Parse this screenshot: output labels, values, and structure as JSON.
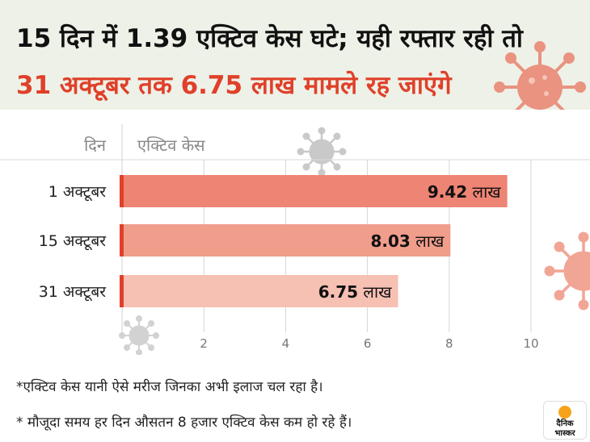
{
  "header": {
    "title_line1": "15 दिन में 1.39 एक्टिव केस घटे; यही रफ्तार रही तो",
    "title_line2": "31 अक्टूबर तक 6.75 लाख मामले रह जाएंगे"
  },
  "chart_data": {
    "type": "bar",
    "orientation": "horizontal",
    "category_header": "दिन",
    "value_header": "एक्टिव केस",
    "categories": [
      "1 अक्टूबर",
      "15 अक्टूबर",
      "31 अक्टूबर"
    ],
    "values": [
      9.42,
      8.03,
      6.75
    ],
    "value_labels": [
      "9.42",
      "8.03",
      "6.75"
    ],
    "unit": "लाख",
    "xlim": [
      0,
      10
    ],
    "xticks": [
      "2",
      "4",
      "6",
      "8",
      "10"
    ],
    "grid": true,
    "colors": {
      "bars": [
        "#ee8474",
        "#f09d8c",
        "#f6c0b3"
      ],
      "bar_cap": "#e0402a",
      "grid": "#d5d5d5",
      "axis_text": "#777777",
      "accent": "#e0402a"
    }
  },
  "notes": {
    "note1": "*एक्टिव केस यानी ऐसे मरीज जिनका अभी इलाज चल रहा है।",
    "note2": "* मौजूदा समय हर दिन औसतन 8 हजार एक्टिव केस कम हो रहे हैं।"
  },
  "logo": {
    "line1": "दैनिक",
    "line2": "भास्कर",
    "colors": {
      "sun": "#f7a21b",
      "text": "#111111"
    }
  }
}
